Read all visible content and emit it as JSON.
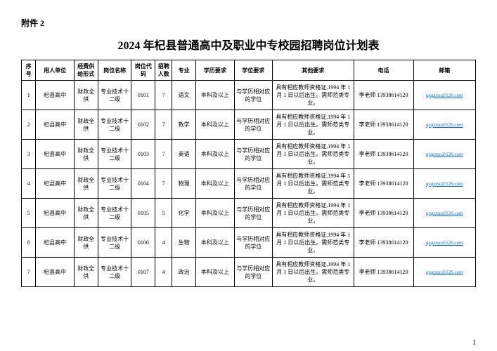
{
  "attachment_label": "附件 2",
  "title": "2024 年杞县普通高中及职业中专校园招聘岗位计划表",
  "columns": [
    "序号",
    "用人单位",
    "经费供给形式",
    "岗位名称",
    "岗位代码",
    "招聘人数",
    "专业",
    "学历要求",
    "学位要求",
    "其他要求",
    "电话",
    "邮箱"
  ],
  "rows": [
    {
      "seq": "1",
      "unit": "杞县高中",
      "fund": "财政全供",
      "post": "专业技术十二级",
      "code": "0101",
      "num": "7",
      "major": "语文",
      "edu": "本科及以上",
      "deg": "与学历相对应的学位",
      "other": "具有相应教师资格证,1994 年 1月 1 日以后出生。需师范类专业。",
      "tel": "李老师 13938614120",
      "email": "qxgzrsc@126.com"
    },
    {
      "seq": "2",
      "unit": "杞县高中",
      "fund": "财政全供",
      "post": "专业技术十二级",
      "code": "0102",
      "num": "7",
      "major": "数学",
      "edu": "本科及以上",
      "deg": "与学历相对应的学位",
      "other": "具有相应教师资格证,1994 年 1月 1 日以后出生。需师范类专业。",
      "tel": "李老师 13938614120",
      "email": "qxgzrsc@126.com"
    },
    {
      "seq": "3",
      "unit": "杞县高中",
      "fund": "财政全供",
      "post": "专业技术十二级",
      "code": "0103",
      "num": "7",
      "major": "英语",
      "edu": "本科及以上",
      "deg": "与学历相对应的学位",
      "other": "具有相应教师资格证,1994 年 1月 1 日以后出生。需师范类专业。",
      "tel": "李老师 13938614120",
      "email": "qxgzrsc@126.com"
    },
    {
      "seq": "4",
      "unit": "杞县高中",
      "fund": "财政全供",
      "post": "专业技术十二级",
      "code": "0104",
      "num": "7",
      "major": "物理",
      "edu": "本科及以上",
      "deg": "与学历相对应的学位",
      "other": "具有相应教师资格证,1994 年 1月 1 日以后出生。需师范类专业。",
      "tel": "李老师 13938614120",
      "email": "qxgzrsc@126.com"
    },
    {
      "seq": "5",
      "unit": "杞县高中",
      "fund": "财政全供",
      "post": "专业技术十二级",
      "code": "0105",
      "num": "5",
      "major": "化学",
      "edu": "本科及以上",
      "deg": "与学历相对应的学位",
      "other": "具有相应教师资格证,1994 年 1月 1 日以后出生。需师范类专业。",
      "tel": "李老师 13938614120",
      "email": "qxgzrsc@126.com"
    },
    {
      "seq": "6",
      "unit": "杞县高中",
      "fund": "财政全供",
      "post": "专业技术十二级",
      "code": "0106",
      "num": "4",
      "major": "生物",
      "edu": "本科及以上",
      "deg": "与学历相对应的学位",
      "other": "具有相应教师资格证,1994 年 1月 1 日以后出生。需师范类专业。",
      "tel": "李老师 13938614120",
      "email": "qxgzrsc@126.com"
    },
    {
      "seq": "7",
      "unit": "杞县高中",
      "fund": "财政全供",
      "post": "专业技术十二级",
      "code": "0107",
      "num": "4",
      "major": "政治",
      "edu": "本科及以上",
      "deg": "与学历相对应的学位",
      "other": "具有相应教师资格证,1994 年 1月 1 日以后出生。需师范类专业。",
      "tel": "李老师 13938614120",
      "email": "qxgzrsc@126.com"
    }
  ],
  "page_number": "1"
}
